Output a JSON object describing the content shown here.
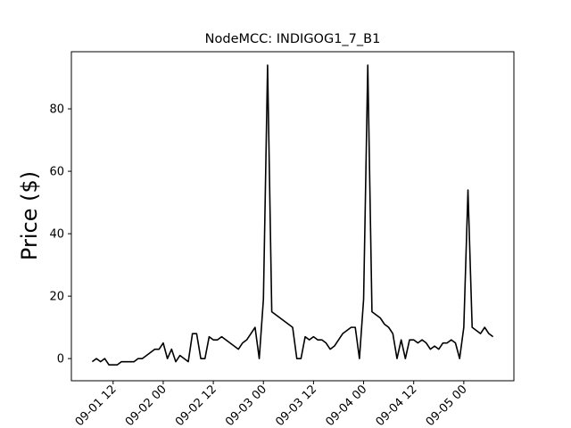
{
  "chart_data": {
    "type": "line",
    "title": "NodeMCC: INDIGOG1_7_B1",
    "y_label": "Price ($)",
    "x": [
      "09-01 07",
      "09-01 08",
      "09-01 09",
      "09-01 10",
      "09-01 11",
      "09-01 12",
      "09-01 13",
      "09-01 14",
      "09-01 15",
      "09-01 16",
      "09-01 17",
      "09-01 18",
      "09-01 19",
      "09-01 20",
      "09-01 21",
      "09-01 22",
      "09-01 23",
      "09-02 00",
      "09-02 01",
      "09-02 02",
      "09-02 03",
      "09-02 04",
      "09-02 05",
      "09-02 06",
      "09-02 07",
      "09-02 08",
      "09-02 09",
      "09-02 10",
      "09-02 11",
      "09-02 12",
      "09-02 13",
      "09-02 14",
      "09-02 15",
      "09-02 16",
      "09-02 17",
      "09-02 18",
      "09-02 19",
      "09-02 20",
      "09-02 21",
      "09-02 22",
      "09-02 23",
      "09-03 00",
      "09-03 01",
      "09-03 02",
      "09-03 03",
      "09-03 04",
      "09-03 05",
      "09-03 06",
      "09-03 07",
      "09-03 08",
      "09-03 09",
      "09-03 10",
      "09-03 11",
      "09-03 12",
      "09-03 13",
      "09-03 14",
      "09-03 15",
      "09-03 16",
      "09-03 17",
      "09-03 18",
      "09-03 19",
      "09-03 20",
      "09-03 21",
      "09-03 22",
      "09-03 23",
      "09-04 00",
      "09-04 01",
      "09-04 02",
      "09-04 03",
      "09-04 04",
      "09-04 05",
      "09-04 06",
      "09-04 07",
      "09-04 08",
      "09-04 09",
      "09-04 10",
      "09-04 11",
      "09-04 12",
      "09-04 13",
      "09-04 14",
      "09-04 15",
      "09-04 16",
      "09-04 17",
      "09-04 18",
      "09-04 19",
      "09-04 20",
      "09-04 21",
      "09-04 22",
      "09-04 23",
      "09-05 00",
      "09-05 01",
      "09-05 02",
      "09-05 03",
      "09-05 04",
      "09-05 05",
      "09-05 06",
      "09-05 07"
    ],
    "series": [
      {
        "name": "INDIGOG1_7_B1",
        "color": "#000000",
        "values": [
          -1,
          0,
          -1,
          0,
          -2,
          -2,
          -2,
          -1,
          -1,
          -1,
          -1,
          0,
          0,
          1,
          2,
          3,
          3,
          5,
          0,
          3,
          -1,
          1,
          0,
          -1,
          8,
          8,
          0,
          0,
          7,
          6,
          6,
          7,
          6,
          5,
          4,
          3,
          5,
          6,
          8,
          10,
          0,
          19,
          94,
          15,
          14,
          13,
          12,
          11,
          10,
          0,
          0,
          7,
          6,
          7,
          6,
          6,
          5,
          3,
          4,
          6,
          8,
          9,
          10,
          10,
          0,
          19,
          94,
          15,
          14,
          13,
          11,
          10,
          8,
          0,
          6,
          0,
          6,
          6,
          5,
          6,
          5,
          3,
          4,
          3,
          5,
          5,
          6,
          5,
          0,
          10,
          54,
          10,
          9,
          8,
          10,
          8,
          7
        ]
      }
    ],
    "xlim": [
      "09-01 02",
      "09-05 12"
    ],
    "xticks": [
      "09-01 12",
      "09-02 00",
      "09-02 12",
      "09-03 00",
      "09-03 12",
      "09-04 00",
      "09-04 12",
      "09-05 00"
    ],
    "ylim": [
      -7.1,
      98.3
    ],
    "yticks": [
      0,
      20,
      40,
      60,
      80
    ],
    "grid": false
  }
}
